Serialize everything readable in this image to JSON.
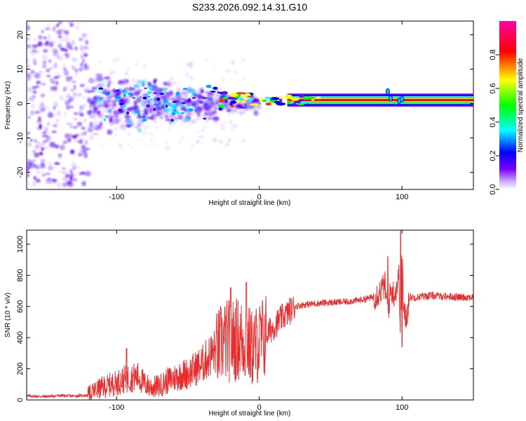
{
  "title": "S233.2026.092.14.31.G10",
  "chart_data": [
    {
      "type": "heatmap",
      "xlabel": "Height of straight line (km)",
      "ylabel": "Frequency (Hz)",
      "xlim": [
        -163,
        150
      ],
      "ylim": [
        -25,
        24
      ],
      "xticks": [
        -100,
        0,
        100
      ],
      "yticks": [
        -20,
        -10,
        0,
        10,
        20
      ],
      "xtick_labels": [
        "-100",
        "0",
        "100"
      ],
      "ytick_labels": [
        "-20",
        "-10",
        "0",
        "10",
        "20"
      ],
      "colorbar": {
        "label": "Normalized spectral amplitude",
        "ticks": [
          0.0,
          0.2,
          0.4,
          0.6,
          0.8
        ],
        "tick_labels": [
          "0.0",
          "0.2",
          "0.4",
          "0.6",
          "0.8"
        ],
        "range": [
          0,
          1
        ],
        "colormap": [
          "#ffffff",
          "#7a00ff",
          "#0000ff",
          "#00ffff",
          "#00ff00",
          "#ffff00",
          "#ff0000",
          "#ff00aa"
        ]
      },
      "description_bands": [
        {
          "x_from": -163,
          "x_to": -120,
          "freq_spread": 24,
          "amplitude": 0.12
        },
        {
          "x_from": -120,
          "x_to": -30,
          "freq_spread": 10,
          "amplitude": 0.18
        },
        {
          "x_from": -30,
          "x_to": 0,
          "freq_spread": 3,
          "amplitude": 0.35
        },
        {
          "x_from": 0,
          "x_to": 150,
          "freq_spread": 1,
          "amplitude": 0.95
        }
      ]
    },
    {
      "type": "line",
      "xlabel": "Height of straight line (km)",
      "ylabel": "SNR (10 * v/v)",
      "xlim": [
        -163,
        150
      ],
      "ylim": [
        0,
        1090
      ],
      "xticks": [
        -100,
        0,
        100
      ],
      "yticks": [
        0,
        200,
        400,
        600,
        800,
        1000
      ],
      "xtick_labels": [
        "-100",
        "0",
        "100"
      ],
      "ytick_labels": [
        "0",
        "200",
        "400",
        "600",
        "800",
        "1000"
      ],
      "color": "#ee2a2a",
      "series": [
        {
          "name": "SNR",
          "x": [
            -163,
            -150,
            -140,
            -130,
            -120,
            -115,
            -110,
            -100,
            -95,
            -90,
            -85,
            -80,
            -75,
            -70,
            -65,
            -60,
            -55,
            -50,
            -45,
            -40,
            -35,
            -30,
            -25,
            -20,
            -15,
            -10,
            -5,
            0,
            5,
            10,
            15,
            20,
            25,
            30,
            40,
            50,
            60,
            70,
            80,
            85,
            88,
            90,
            92,
            95,
            98,
            99,
            100,
            101,
            103,
            105,
            110,
            120,
            130,
            140,
            150
          ],
          "y": [
            25,
            22,
            28,
            25,
            30,
            60,
            80,
            110,
            130,
            140,
            150,
            100,
            80,
            90,
            120,
            140,
            160,
            170,
            200,
            230,
            280,
            320,
            380,
            380,
            390,
            380,
            330,
            370,
            420,
            470,
            520,
            560,
            600,
            610,
            620,
            625,
            630,
            640,
            660,
            700,
            740,
            560,
            700,
            680,
            800,
            340,
            1080,
            560,
            520,
            660,
            660,
            670,
            665,
            660,
            660
          ]
        }
      ],
      "spikes": [
        {
          "x": -93,
          "y": 330
        },
        {
          "x": -20,
          "y": 720
        },
        {
          "x": -9,
          "y": 755
        },
        {
          "x": 90,
          "y": 920
        },
        {
          "x": 99,
          "y": 1085
        },
        {
          "x": 100,
          "y": 340
        }
      ]
    }
  ]
}
